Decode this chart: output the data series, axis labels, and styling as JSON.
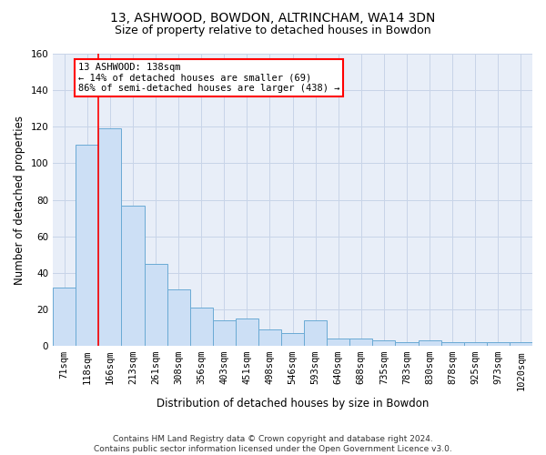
{
  "title": "13, ASHWOOD, BOWDON, ALTRINCHAM, WA14 3DN",
  "subtitle": "Size of property relative to detached houses in Bowdon",
  "xlabel": "Distribution of detached houses by size in Bowdon",
  "ylabel": "Number of detached properties",
  "categories": [
    "71sqm",
    "118sqm",
    "166sqm",
    "213sqm",
    "261sqm",
    "308sqm",
    "356sqm",
    "403sqm",
    "451sqm",
    "498sqm",
    "546sqm",
    "593sqm",
    "640sqm",
    "688sqm",
    "735sqm",
    "783sqm",
    "830sqm",
    "878sqm",
    "925sqm",
    "973sqm",
    "1020sqm"
  ],
  "bar_values": [
    32,
    110,
    119,
    77,
    45,
    31,
    21,
    14,
    15,
    9,
    7,
    14,
    4,
    4,
    3,
    2,
    3,
    2,
    2,
    2,
    2
  ],
  "bar_color": "#ccdff5",
  "bar_edge_color": "#6aaad4",
  "vline_x": 1.5,
  "vline_color": "red",
  "annotation_text": "13 ASHWOOD: 138sqm\n← 14% of detached houses are smaller (69)\n86% of semi-detached houses are larger (438) →",
  "annotation_box_color": "white",
  "annotation_box_edge": "red",
  "ylim": [
    0,
    160
  ],
  "yticks": [
    0,
    20,
    40,
    60,
    80,
    100,
    120,
    140,
    160
  ],
  "grid_color": "#c8d4e8",
  "background_color": "#e8eef8",
  "footer": "Contains HM Land Registry data © Crown copyright and database right 2024.\nContains public sector information licensed under the Open Government Licence v3.0.",
  "title_fontsize": 10,
  "subtitle_fontsize": 9,
  "xlabel_fontsize": 8.5,
  "ylabel_fontsize": 8.5,
  "tick_fontsize": 7.5,
  "footer_fontsize": 6.5
}
